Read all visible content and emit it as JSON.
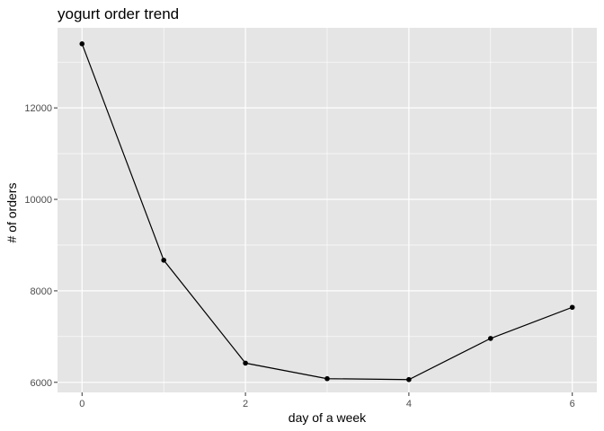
{
  "chart_data": {
    "type": "line",
    "title": "yogurt order trend",
    "xlabel": "day of a week",
    "ylabel": "# of orders",
    "x": [
      0,
      1,
      2,
      3,
      4,
      5,
      6
    ],
    "series": [
      {
        "values": [
          13400,
          8670,
          6420,
          6080,
          6060,
          6960,
          7640
        ]
      }
    ],
    "xlim": [
      -0.3,
      6.3
    ],
    "ylim": [
      5780,
      13750
    ],
    "x_ticks": [
      0,
      2,
      4,
      6
    ],
    "y_ticks": [
      6000,
      8000,
      10000,
      12000
    ],
    "grid": true,
    "colors": {
      "panel": "#e5e5e5",
      "grid": "#ffffff",
      "line": "#000000",
      "point": "#000000"
    }
  }
}
